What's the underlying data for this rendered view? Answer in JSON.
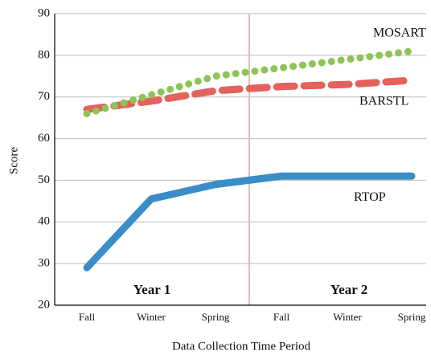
{
  "chart_data": {
    "type": "line",
    "x_label": "Data Collection Time Period",
    "y_label": "Score",
    "categories": [
      "Fall",
      "Winter",
      "Spring",
      "Fall",
      "Winter",
      "Spring"
    ],
    "annotations": [
      "Year 1",
      "Year 2"
    ],
    "series": [
      {
        "name": "RTOP",
        "color": "#3a8dc6",
        "style": "solid",
        "values": [
          29,
          45.5,
          49,
          51,
          51,
          51
        ]
      },
      {
        "name": "BARSTL",
        "color": "#e3625b",
        "style": "dashed",
        "values": [
          67,
          69,
          71.5,
          72.5,
          73,
          74
        ]
      },
      {
        "name": "MOSART",
        "color": "#8dc456",
        "style": "dotted",
        "values": [
          66,
          70.5,
          75,
          77,
          79,
          81
        ]
      }
    ],
    "ylim": [
      20,
      90
    ],
    "yticks": [
      20,
      30,
      40,
      50,
      60,
      70,
      80,
      90
    ],
    "grid": true
  }
}
